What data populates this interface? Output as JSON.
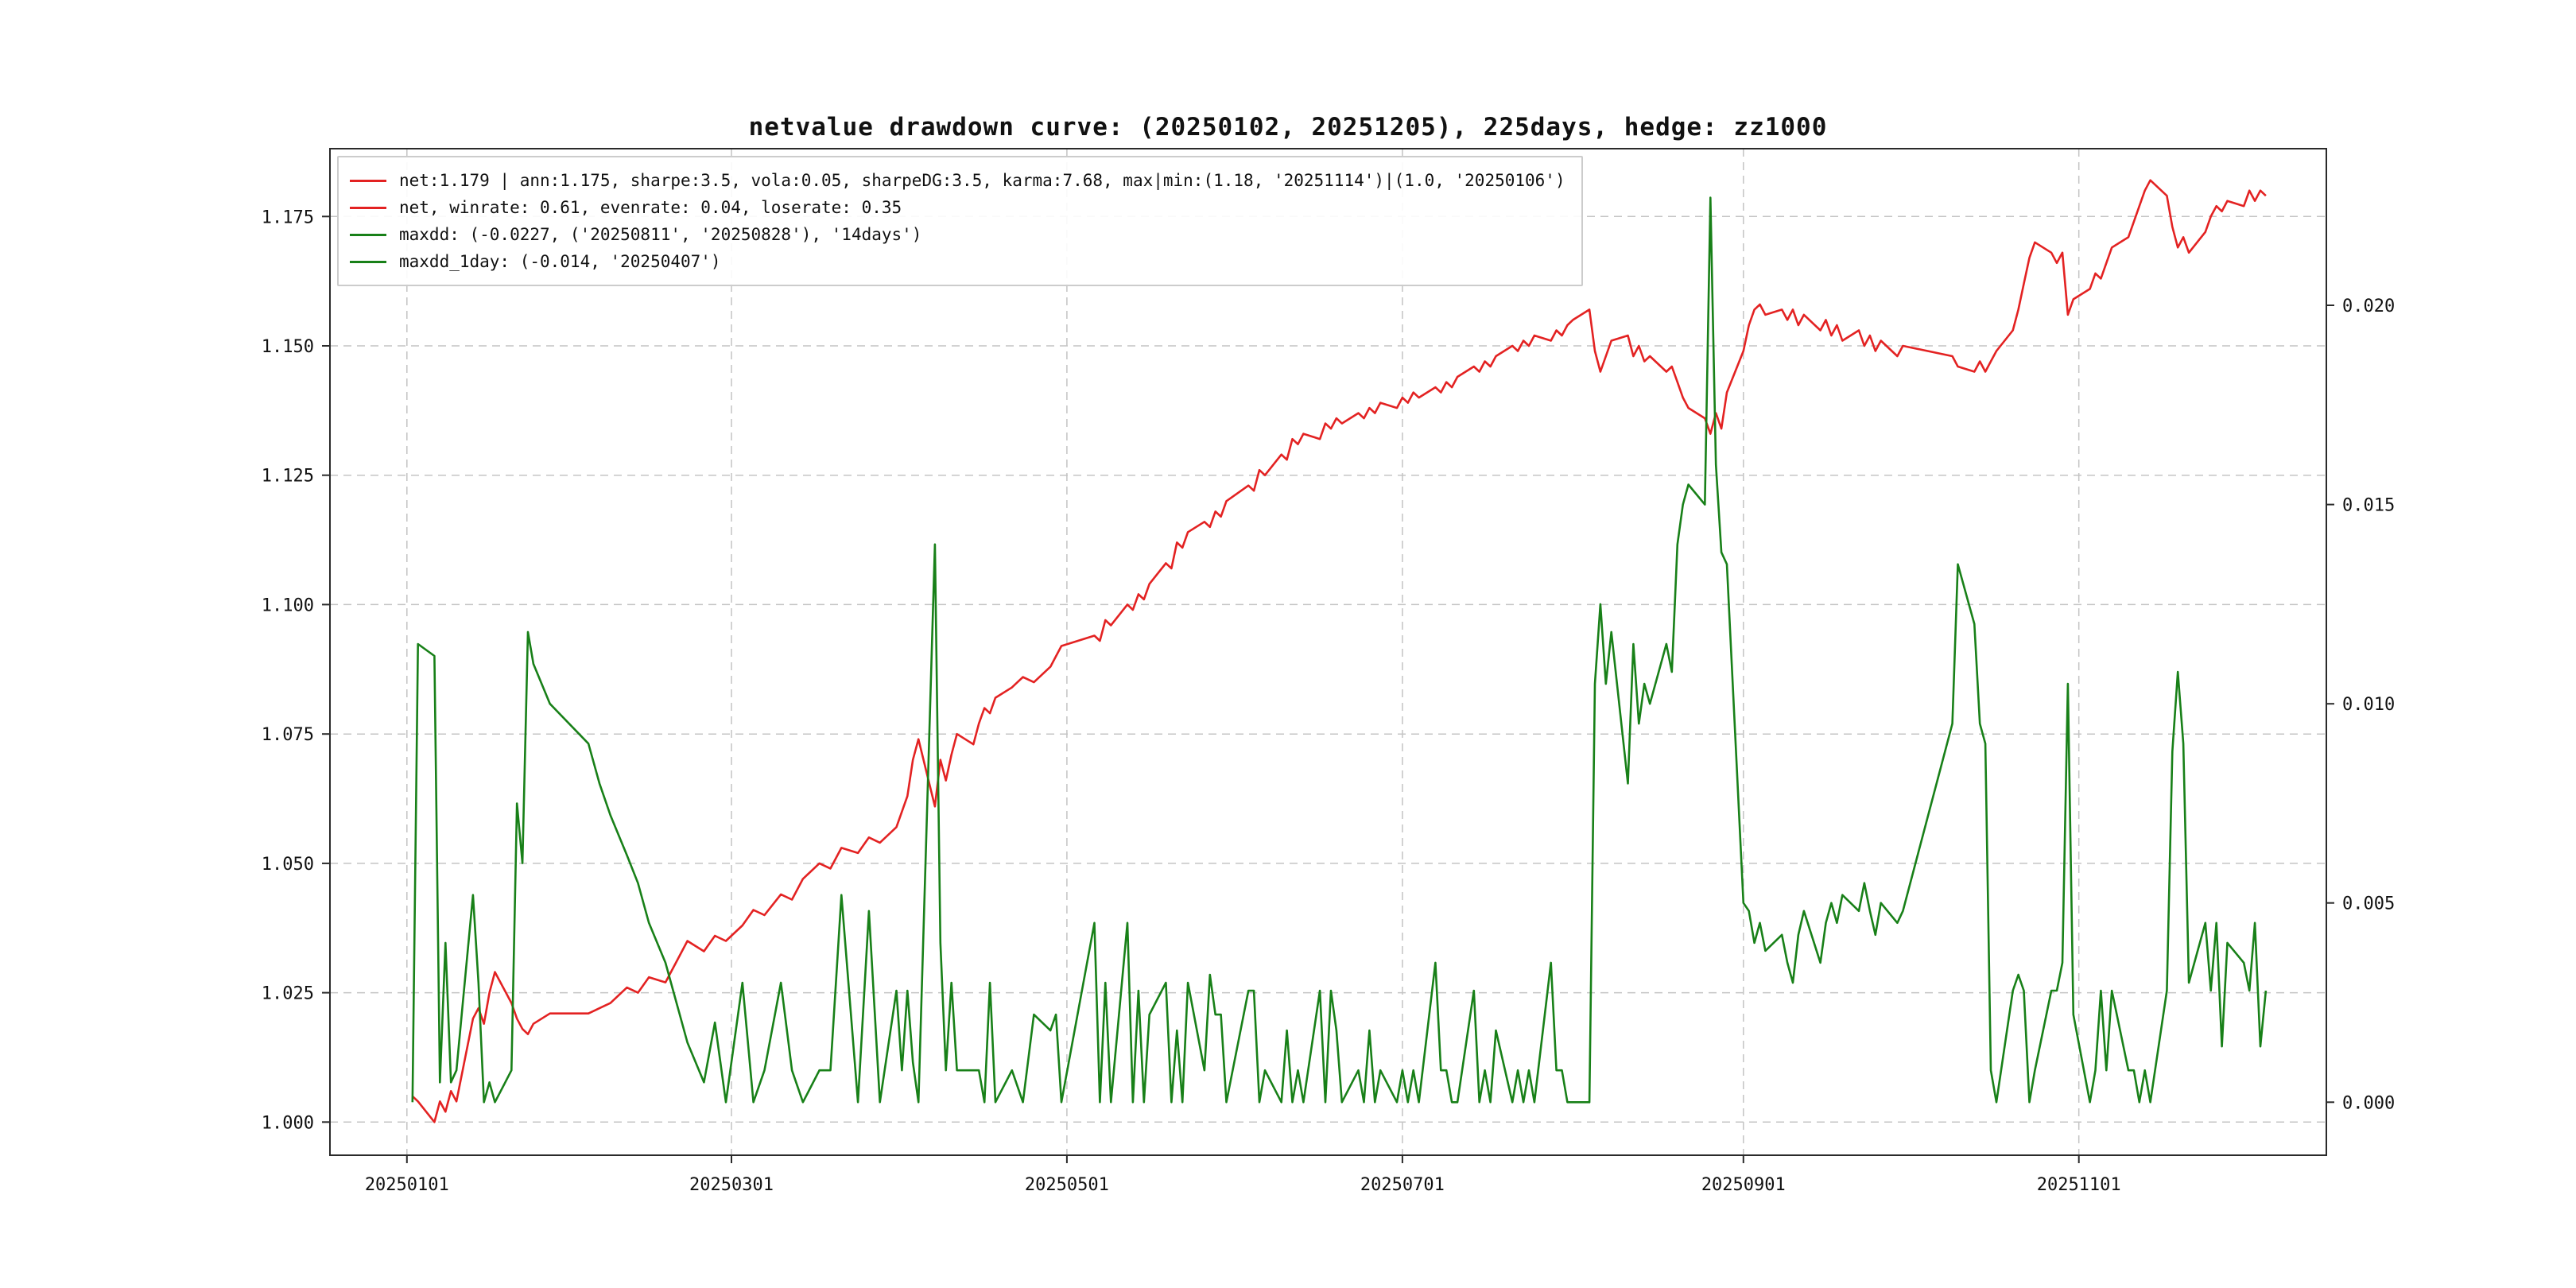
{
  "title": "netvalue drawdown curve: (20250102, 20251205), 225days, hedge: zz1000",
  "legend": {
    "items": [
      {
        "label": "net:1.179 | ann:1.175, sharpe:3.5, vola:0.05, sharpeDG:3.5, karma:7.68, max|min:(1.18, '20251114')|(1.0, '20250106')",
        "color": "#e32222"
      },
      {
        "label": "net, winrate: 0.61, evenrate: 0.04, loserate: 0.35",
        "color": "#e32222"
      },
      {
        "label": "maxdd: (-0.0227, ('20250811', '20250828'), '14days')",
        "color": "#188018"
      },
      {
        "label": "maxdd_1day: (-0.014, '20250407')",
        "color": "#188018"
      }
    ]
  },
  "chart_data": {
    "type": "line",
    "title": "netvalue drawdown curve: (20250102, 20251205), 225days, hedge: zz1000",
    "grid": "dashed",
    "legend_position": "upper-left",
    "x_tick_labels": [
      "20250101",
      "20250301",
      "20250501",
      "20250701",
      "20250901",
      "20251101"
    ],
    "left_axis": {
      "tick_values": [
        1.0,
        1.025,
        1.05,
        1.075,
        1.1,
        1.125,
        1.15,
        1.175
      ],
      "tick_labels": [
        "1.000",
        "1.025",
        "1.050",
        "1.075",
        "1.100",
        "1.125",
        "1.150",
        "1.175"
      ]
    },
    "right_axis": {
      "tick_values": [
        0.0,
        0.005,
        0.01,
        0.015,
        0.02
      ],
      "tick_labels": [
        "0.000",
        "0.005",
        "0.010",
        "0.015",
        "0.020"
      ]
    },
    "xlim_days": [
      -14,
      349
    ],
    "left_ylim": [
      0.9936,
      1.1881
    ],
    "right_ylim": [
      -0.00133,
      0.02393
    ],
    "series_meta": [
      {
        "name": "net",
        "axis": "left",
        "color": "#e32222",
        "col": 1
      },
      {
        "name": "drawdown",
        "axis": "right",
        "color": "#188018",
        "col": 2
      }
    ],
    "points": [
      [
        "20250102",
        1.005,
        0.0
      ],
      [
        "20250103",
        1.004,
        0.0115
      ],
      [
        "20250106",
        1.0,
        0.0112
      ],
      [
        "20250107",
        1.004,
        0.0005
      ],
      [
        "20250108",
        1.002,
        0.004
      ],
      [
        "20250109",
        1.006,
        0.0005
      ],
      [
        "20250110",
        1.004,
        0.0008
      ],
      [
        "20250113",
        1.02,
        0.0052
      ],
      [
        "20250114",
        1.022,
        0.003
      ],
      [
        "20250115",
        1.019,
        0.0
      ],
      [
        "20250116",
        1.025,
        0.0005
      ],
      [
        "20250117",
        1.029,
        0.0
      ],
      [
        "20250120",
        1.023,
        0.0008
      ],
      [
        "20250121",
        1.02,
        0.0075
      ],
      [
        "20250122",
        1.018,
        0.006
      ],
      [
        "20250123",
        1.017,
        0.0118
      ],
      [
        "20250124",
        1.019,
        0.011
      ],
      [
        "20250127",
        1.021,
        0.01
      ],
      [
        "20250203",
        1.021,
        0.009
      ],
      [
        "20250205",
        1.022,
        0.008
      ],
      [
        "20250207",
        1.023,
        0.0072
      ],
      [
        "20250210",
        1.026,
        0.0062
      ],
      [
        "20250212",
        1.025,
        0.0055
      ],
      [
        "20250214",
        1.028,
        0.0045
      ],
      [
        "20250217",
        1.027,
        0.0035
      ],
      [
        "20250219",
        1.031,
        0.0025
      ],
      [
        "20250221",
        1.035,
        0.0015
      ],
      [
        "20250224",
        1.033,
        0.0005
      ],
      [
        "20250226",
        1.036,
        0.002
      ],
      [
        "20250228",
        1.035,
        0.0
      ],
      [
        "20250303",
        1.038,
        0.003
      ],
      [
        "20250305",
        1.041,
        0.0
      ],
      [
        "20250307",
        1.04,
        0.0008
      ],
      [
        "20250310",
        1.044,
        0.003
      ],
      [
        "20250312",
        1.043,
        0.0008
      ],
      [
        "20250314",
        1.047,
        0.0
      ],
      [
        "20250317",
        1.05,
        0.0008
      ],
      [
        "20250319",
        1.049,
        0.0008
      ],
      [
        "20250321",
        1.053,
        0.0052
      ],
      [
        "20250324",
        1.052,
        0.0
      ],
      [
        "20250326",
        1.055,
        0.0048
      ],
      [
        "20250328",
        1.054,
        0.0
      ],
      [
        "20250331",
        1.057,
        0.0028
      ],
      [
        "20250401",
        1.06,
        0.0008
      ],
      [
        "20250402",
        1.063,
        0.0028
      ],
      [
        "20250403",
        1.07,
        0.001
      ],
      [
        "20250404",
        1.074,
        0.0
      ],
      [
        "20250407",
        1.061,
        0.014
      ],
      [
        "20250408",
        1.07,
        0.004
      ],
      [
        "20250409",
        1.066,
        0.0008
      ],
      [
        "20250410",
        1.071,
        0.003
      ],
      [
        "20250411",
        1.075,
        0.0008
      ],
      [
        "20250414",
        1.073,
        0.0008
      ],
      [
        "20250415",
        1.077,
        0.0008
      ],
      [
        "20250416",
        1.08,
        0.0
      ],
      [
        "20250417",
        1.079,
        0.003
      ],
      [
        "20250418",
        1.082,
        0.0
      ],
      [
        "20250421",
        1.084,
        0.0008
      ],
      [
        "20250423",
        1.086,
        0.0
      ],
      [
        "20250425",
        1.085,
        0.0022
      ],
      [
        "20250428",
        1.088,
        0.0018
      ],
      [
        "20250429",
        1.09,
        0.0022
      ],
      [
        "20250430",
        1.092,
        0.0
      ],
      [
        "20250506",
        1.094,
        0.0045
      ],
      [
        "20250507",
        1.093,
        0.0
      ],
      [
        "20250508",
        1.097,
        0.003
      ],
      [
        "20250509",
        1.096,
        0.0
      ],
      [
        "20250512",
        1.1,
        0.0045
      ],
      [
        "20250513",
        1.099,
        0.0
      ],
      [
        "20250514",
        1.102,
        0.0028
      ],
      [
        "20250515",
        1.101,
        0.0
      ],
      [
        "20250516",
        1.104,
        0.0022
      ],
      [
        "20250519",
        1.108,
        0.003
      ],
      [
        "20250520",
        1.107,
        0.0
      ],
      [
        "20250521",
        1.112,
        0.0018
      ],
      [
        "20250522",
        1.111,
        0.0
      ],
      [
        "20250523",
        1.114,
        0.003
      ],
      [
        "20250526",
        1.116,
        0.0008
      ],
      [
        "20250527",
        1.115,
        0.0032
      ],
      [
        "20250528",
        1.118,
        0.0022
      ],
      [
        "20250529",
        1.117,
        0.0022
      ],
      [
        "20250530",
        1.12,
        0.0
      ],
      [
        "20250603",
        1.123,
        0.0028
      ],
      [
        "20250604",
        1.122,
        0.0028
      ],
      [
        "20250605",
        1.126,
        0.0
      ],
      [
        "20250606",
        1.125,
        0.0008
      ],
      [
        "20250609",
        1.129,
        0.0
      ],
      [
        "20250610",
        1.128,
        0.0018
      ],
      [
        "20250611",
        1.132,
        0.0
      ],
      [
        "20250612",
        1.131,
        0.0008
      ],
      [
        "20250613",
        1.133,
        0.0
      ],
      [
        "20250616",
        1.132,
        0.0028
      ],
      [
        "20250617",
        1.135,
        0.0
      ],
      [
        "20250618",
        1.134,
        0.0028
      ],
      [
        "20250619",
        1.136,
        0.0018
      ],
      [
        "20250620",
        1.135,
        0.0
      ],
      [
        "20250623",
        1.137,
        0.0008
      ],
      [
        "20250624",
        1.136,
        0.0
      ],
      [
        "20250625",
        1.138,
        0.0018
      ],
      [
        "20250626",
        1.137,
        0.0
      ],
      [
        "20250627",
        1.139,
        0.0008
      ],
      [
        "20250630",
        1.138,
        0.0
      ],
      [
        "20250701",
        1.14,
        0.0008
      ],
      [
        "20250702",
        1.139,
        0.0
      ],
      [
        "20250703",
        1.141,
        0.0008
      ],
      [
        "20250704",
        1.14,
        0.0
      ],
      [
        "20250707",
        1.142,
        0.0035
      ],
      [
        "20250708",
        1.141,
        0.0008
      ],
      [
        "20250709",
        1.143,
        0.0008
      ],
      [
        "20250710",
        1.142,
        0.0
      ],
      [
        "20250711",
        1.144,
        0.0
      ],
      [
        "20250714",
        1.146,
        0.0028
      ],
      [
        "20250715",
        1.145,
        0.0
      ],
      [
        "20250716",
        1.147,
        0.0008
      ],
      [
        "20250717",
        1.146,
        0.0
      ],
      [
        "20250718",
        1.148,
        0.0018
      ],
      [
        "20250721",
        1.15,
        0.0
      ],
      [
        "20250722",
        1.149,
        0.0008
      ],
      [
        "20250723",
        1.151,
        0.0
      ],
      [
        "20250724",
        1.15,
        0.0008
      ],
      [
        "20250725",
        1.152,
        0.0
      ],
      [
        "20250728",
        1.151,
        0.0035
      ],
      [
        "20250729",
        1.153,
        0.0008
      ],
      [
        "20250730",
        1.152,
        0.0008
      ],
      [
        "20250731",
        1.154,
        0.0
      ],
      [
        "20250801",
        1.155,
        0.0
      ],
      [
        "20250804",
        1.157,
        0.0
      ],
      [
        "20250805",
        1.149,
        0.0105
      ],
      [
        "20250806",
        1.145,
        0.0125
      ],
      [
        "20250807",
        1.148,
        0.0105
      ],
      [
        "20250808",
        1.151,
        0.0118
      ],
      [
        "20250811",
        1.152,
        0.008
      ],
      [
        "20250812",
        1.148,
        0.0115
      ],
      [
        "20250813",
        1.15,
        0.0095
      ],
      [
        "20250814",
        1.147,
        0.0105
      ],
      [
        "20250815",
        1.148,
        0.01
      ],
      [
        "20250818",
        1.145,
        0.0115
      ],
      [
        "20250819",
        1.146,
        0.0108
      ],
      [
        "20250820",
        1.143,
        0.014
      ],
      [
        "20250821",
        1.14,
        0.015
      ],
      [
        "20250822",
        1.138,
        0.0155
      ],
      [
        "20250825",
        1.136,
        0.015
      ],
      [
        "20250826",
        1.133,
        0.0227
      ],
      [
        "20250827",
        1.137,
        0.016
      ],
      [
        "20250828",
        1.134,
        0.0138
      ],
      [
        "20250829",
        1.141,
        0.0135
      ],
      [
        "20250901",
        1.149,
        0.005
      ],
      [
        "20250902",
        1.154,
        0.0048
      ],
      [
        "20250903",
        1.157,
        0.004
      ],
      [
        "20250904",
        1.158,
        0.0045
      ],
      [
        "20250905",
        1.156,
        0.0038
      ],
      [
        "20250908",
        1.157,
        0.0042
      ],
      [
        "20250909",
        1.155,
        0.0035
      ],
      [
        "20250910",
        1.157,
        0.003
      ],
      [
        "20250911",
        1.154,
        0.0042
      ],
      [
        "20250912",
        1.156,
        0.0048
      ],
      [
        "20250915",
        1.153,
        0.0035
      ],
      [
        "20250916",
        1.155,
        0.0045
      ],
      [
        "20250917",
        1.152,
        0.005
      ],
      [
        "20250918",
        1.154,
        0.0045
      ],
      [
        "20250919",
        1.151,
        0.0052
      ],
      [
        "20250922",
        1.153,
        0.0048
      ],
      [
        "20250923",
        1.15,
        0.0055
      ],
      [
        "20250924",
        1.152,
        0.0048
      ],
      [
        "20250925",
        1.149,
        0.0042
      ],
      [
        "20250926",
        1.151,
        0.005
      ],
      [
        "20250929",
        1.148,
        0.0045
      ],
      [
        "20250930",
        1.15,
        0.0048
      ],
      [
        "20251009",
        1.148,
        0.0095
      ],
      [
        "20251010",
        1.146,
        0.0135
      ],
      [
        "20251013",
        1.145,
        0.012
      ],
      [
        "20251014",
        1.147,
        0.0095
      ],
      [
        "20251015",
        1.145,
        0.009
      ],
      [
        "20251016",
        1.147,
        0.0008
      ],
      [
        "20251017",
        1.149,
        0.0
      ],
      [
        "20251020",
        1.153,
        0.0028
      ],
      [
        "20251021",
        1.157,
        0.0032
      ],
      [
        "20251022",
        1.162,
        0.0028
      ],
      [
        "20251023",
        1.167,
        0.0
      ],
      [
        "20251024",
        1.17,
        0.0008
      ],
      [
        "20251027",
        1.168,
        0.0028
      ],
      [
        "20251028",
        1.166,
        0.0028
      ],
      [
        "20251029",
        1.168,
        0.0035
      ],
      [
        "20251030",
        1.156,
        0.0105
      ],
      [
        "20251031",
        1.159,
        0.0022
      ],
      [
        "20251103",
        1.161,
        0.0
      ],
      [
        "20251104",
        1.164,
        0.0008
      ],
      [
        "20251105",
        1.163,
        0.0028
      ],
      [
        "20251106",
        1.166,
        0.0008
      ],
      [
        "20251107",
        1.169,
        0.0028
      ],
      [
        "20251110",
        1.171,
        0.0008
      ],
      [
        "20251111",
        1.174,
        0.0008
      ],
      [
        "20251112",
        1.177,
        0.0
      ],
      [
        "20251113",
        1.18,
        0.0008
      ],
      [
        "20251114",
        1.182,
        0.0
      ],
      [
        "20251117",
        1.179,
        0.0028
      ],
      [
        "20251118",
        1.173,
        0.0088
      ],
      [
        "20251119",
        1.169,
        0.0108
      ],
      [
        "20251120",
        1.171,
        0.009
      ],
      [
        "20251121",
        1.168,
        0.003
      ],
      [
        "20251124",
        1.172,
        0.0045
      ],
      [
        "20251125",
        1.175,
        0.0028
      ],
      [
        "20251126",
        1.177,
        0.0045
      ],
      [
        "20251127",
        1.176,
        0.0014
      ],
      [
        "20251128",
        1.178,
        0.004
      ],
      [
        "20251201",
        1.177,
        0.0035
      ],
      [
        "20251202",
        1.18,
        0.0028
      ],
      [
        "20251203",
        1.178,
        0.0045
      ],
      [
        "20251204",
        1.18,
        0.0014
      ],
      [
        "20251205",
        1.179,
        0.0028
      ]
    ]
  },
  "style": {
    "grid_color": "#c4c4c4",
    "spine_color": "#2a2a2a",
    "background": "#ffffff"
  }
}
